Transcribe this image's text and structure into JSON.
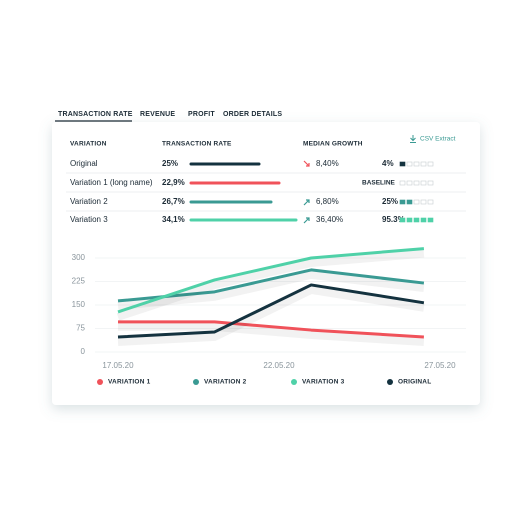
{
  "tabs": [
    "TRANSACTION RATE",
    "REVENUE",
    "PROFIT",
    "ORDER DETAILS"
  ],
  "csv_link": "CSV Extract",
  "table": {
    "headers": [
      "VARIATION",
      "TRANSACTION RATE",
      "MEDIAN GROWTH"
    ],
    "rows": [
      {
        "name": "Original",
        "rate": "25%",
        "growth": "8,40%",
        "trend": "down",
        "score": "4%",
        "color": "#14323f"
      },
      {
        "name": "Variation 1 (long name)",
        "rate": "22,9%",
        "score": "BASELINE",
        "color": "#f0525a"
      },
      {
        "name": "Variation 2",
        "rate": "26,7%",
        "growth": "6,80%",
        "trend": "up",
        "score": "25%",
        "color": "#3a9a93"
      },
      {
        "name": "Variation 3",
        "rate": "34,1%",
        "growth": "36,40%",
        "trend": "up",
        "score": "95.3%",
        "color": "#4fd1a8"
      }
    ]
  },
  "chart_data": {
    "type": "line",
    "x": [
      17,
      20,
      23,
      26.5
    ],
    "xlim": [
      17,
      27
    ],
    "xticks": [
      {
        "value": 17,
        "label": "17.05.20"
      },
      {
        "value": 22,
        "label": "22.05.20"
      },
      {
        "value": 27,
        "label": "27.05.20"
      }
    ],
    "ylim": [
      0,
      330
    ],
    "yticks": [
      0,
      75,
      150,
      225,
      300
    ],
    "grid": true,
    "legend": "bottom",
    "series": [
      {
        "name": "VARIATION 1",
        "color": "#f0525a",
        "values": [
          96,
          96,
          70,
          48
        ]
      },
      {
        "name": "VARIATION 2",
        "color": "#3a9a93",
        "values": [
          163,
          192,
          262,
          220
        ]
      },
      {
        "name": "VARIATION 3",
        "color": "#4fd1a8",
        "values": [
          128,
          230,
          300,
          330
        ]
      },
      {
        "name": "ORIGINAL",
        "color": "#14323f",
        "values": [
          48,
          64,
          214,
          157
        ]
      }
    ]
  }
}
